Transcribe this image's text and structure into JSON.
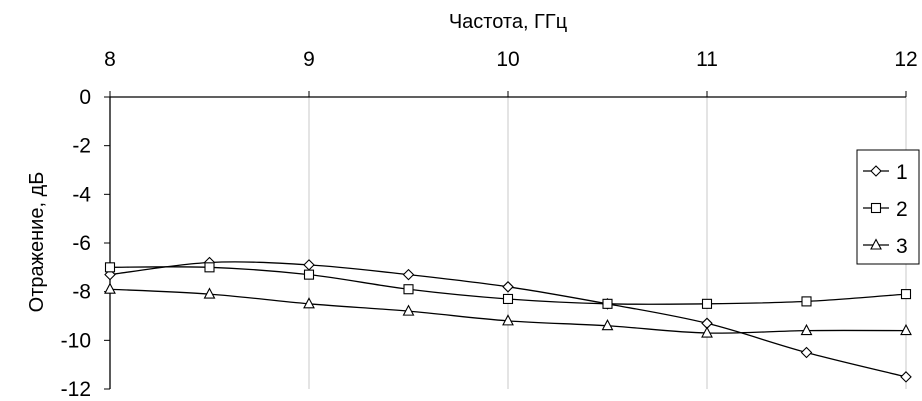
{
  "chart_data": {
    "type": "line",
    "xlabel": "Частота, ГГц",
    "ylabel": "Отражение, дБ",
    "xlim": [
      8,
      12
    ],
    "ylim": [
      -12,
      0
    ],
    "x_ticks": [
      "8",
      "9",
      "10",
      "11",
      "12"
    ],
    "y_ticks": [
      "0",
      "-2",
      "-4",
      "-6",
      "-8",
      "-10",
      "-12"
    ],
    "x_axis_position": "top",
    "grid": true,
    "legend": "right",
    "series": [
      {
        "name": "1",
        "marker": "diamond",
        "color": "#000000",
        "x": [
          8,
          8.5,
          9,
          9.5,
          10,
          10.5,
          11,
          11.5,
          12
        ],
        "y": [
          -7.3,
          -6.8,
          -6.9,
          -7.3,
          -7.8,
          -8.5,
          -9.3,
          -10.5,
          -11.5
        ]
      },
      {
        "name": "2",
        "marker": "square",
        "color": "#000000",
        "x": [
          8,
          8.5,
          9,
          9.5,
          10,
          10.5,
          11,
          11.5,
          12
        ],
        "y": [
          -7.0,
          -7.0,
          -7.3,
          -7.9,
          -8.3,
          -8.5,
          -8.5,
          -8.4,
          -8.1
        ]
      },
      {
        "name": "3",
        "marker": "triangle",
        "color": "#000000",
        "x": [
          8,
          8.5,
          9,
          9.5,
          10,
          10.5,
          11,
          11.5,
          12
        ],
        "y": [
          -7.9,
          -8.1,
          -8.5,
          -8.8,
          -9.2,
          -9.4,
          -9.7,
          -9.6,
          -9.6
        ]
      }
    ]
  }
}
